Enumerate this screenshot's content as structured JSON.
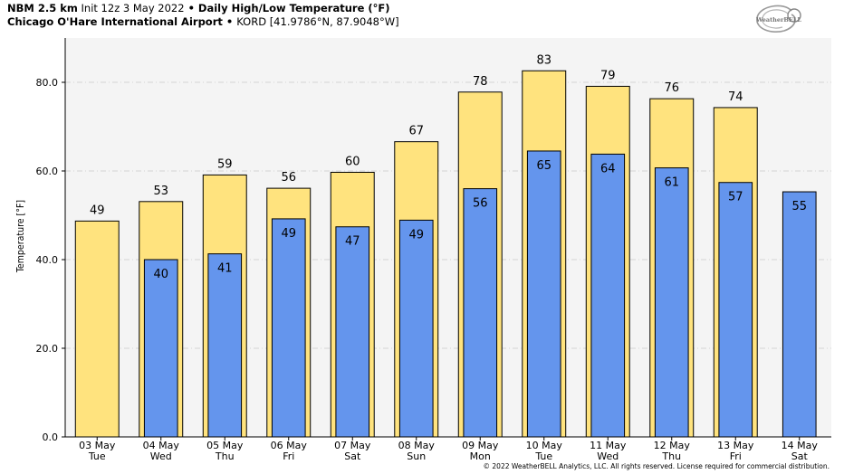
{
  "header": {
    "model": "NBM 2.5 km",
    "init": " Init 12z 3 May 2022",
    "sep1": " • ",
    "product": "Daily High/Low Temperature (°F)",
    "station": "Chicago O'Hare International Airport",
    "sep2": " • ",
    "station_code": "KORD [41.9786°N, 87.9048°W]"
  },
  "logo": {
    "text": "WeatherBELL",
    "icon": "weatherbell-swirl-logo"
  },
  "footer": "© 2022 WeatherBELL Analytics, LLC. All rights reserved. License required for commercial distribution.",
  "colors": {
    "high_bar": "#FFE37E",
    "low_bar": "#6495ED",
    "plot_bg": "#F4F4F4",
    "grid": "#C8C8C8"
  },
  "chart_data": {
    "type": "bar",
    "title": "Daily High/Low Temperature (°F)",
    "ylabel": "Temperature [°F]",
    "ylim": [
      0,
      90
    ],
    "yticks": [
      "0.0",
      "20.0",
      "40.0",
      "60.0",
      "80.0"
    ],
    "grid": true,
    "categories": [
      [
        "03 May",
        "Tue"
      ],
      [
        "04 May",
        "Wed"
      ],
      [
        "05 May",
        "Thu"
      ],
      [
        "06 May",
        "Fri"
      ],
      [
        "07 May",
        "Sat"
      ],
      [
        "08 May",
        "Sun"
      ],
      [
        "09 May",
        "Mon"
      ],
      [
        "10 May",
        "Tue"
      ],
      [
        "11 May",
        "Wed"
      ],
      [
        "12 May",
        "Thu"
      ],
      [
        "13 May",
        "Fri"
      ],
      [
        "14 May",
        "Sat"
      ]
    ],
    "series": [
      {
        "values": [
          48.7,
          53.1,
          59.1,
          56.1,
          59.7,
          66.6,
          77.8,
          82.6,
          79.1,
          76.3,
          74.3,
          null
        ],
        "labels": [
          "49",
          "53",
          "59",
          "56",
          "60",
          "67",
          "78",
          "83",
          "79",
          "76",
          "74",
          ""
        ]
      },
      {
        "values": [
          null,
          40.0,
          41.3,
          49.2,
          47.4,
          48.9,
          56.0,
          64.5,
          63.8,
          60.7,
          57.4,
          55.3
        ],
        "labels": [
          "",
          "40",
          "41",
          "49",
          "47",
          "49",
          "56",
          "65",
          "64",
          "61",
          "57",
          "55"
        ]
      }
    ]
  }
}
